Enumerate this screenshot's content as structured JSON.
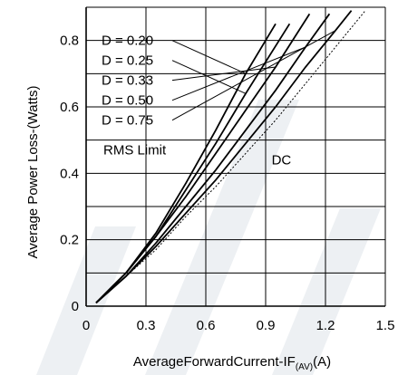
{
  "chart_data": {
    "type": "line",
    "xlabel_main": "AverageForwardCurrent-IF",
    "xlabel_sub": "(AV)",
    "xlabel_unit": "(A)",
    "ylabel": "Average Power Loss-(Watts)",
    "xlim": [
      0,
      1.5
    ],
    "ylim": [
      0,
      0.9
    ],
    "x_ticks": [
      "0",
      "0.3",
      "0.6",
      "0.9",
      "1.2",
      "1.5"
    ],
    "y_ticks": [
      "0",
      "0.2",
      "0.4",
      "0.6",
      "0.8"
    ],
    "grid": true,
    "series": [
      {
        "name": "D = 0.20",
        "x": [
          0.05,
          0.2,
          0.35,
          0.5,
          0.65,
          0.8,
          0.95
        ],
        "y": [
          0.01,
          0.1,
          0.22,
          0.37,
          0.53,
          0.7,
          0.85
        ]
      },
      {
        "name": "D = 0.25",
        "x": [
          0.05,
          0.2,
          0.35,
          0.5,
          0.65,
          0.8,
          1.02
        ],
        "y": [
          0.01,
          0.1,
          0.21,
          0.35,
          0.49,
          0.64,
          0.85
        ]
      },
      {
        "name": "D = 0.33",
        "x": [
          0.05,
          0.2,
          0.35,
          0.5,
          0.65,
          0.8,
          0.95,
          1.12
        ],
        "y": [
          0.01,
          0.1,
          0.21,
          0.33,
          0.46,
          0.59,
          0.72,
          0.88
        ]
      },
      {
        "name": "D = 0.50",
        "x": [
          0.05,
          0.2,
          0.35,
          0.5,
          0.65,
          0.8,
          0.95,
          1.1,
          1.22
        ],
        "y": [
          0.01,
          0.09,
          0.19,
          0.3,
          0.41,
          0.53,
          0.65,
          0.78,
          0.88
        ]
      },
      {
        "name": "D = 0.75",
        "x": [
          0.05,
          0.2,
          0.35,
          0.5,
          0.65,
          0.8,
          0.95,
          1.1,
          1.25,
          1.33
        ],
        "y": [
          0.01,
          0.09,
          0.18,
          0.28,
          0.38,
          0.49,
          0.6,
          0.72,
          0.83,
          0.89
        ]
      },
      {
        "name": "DC",
        "x": [
          0.05,
          0.2,
          0.35,
          0.5,
          0.65,
          0.8,
          0.95,
          1.1,
          1.25,
          1.4
        ],
        "y": [
          0.01,
          0.09,
          0.17,
          0.27,
          0.36,
          0.46,
          0.56,
          0.67,
          0.78,
          0.89
        ]
      }
    ],
    "annotations": {
      "rms_limit": "RMS Limit",
      "dc": "DC"
    }
  }
}
